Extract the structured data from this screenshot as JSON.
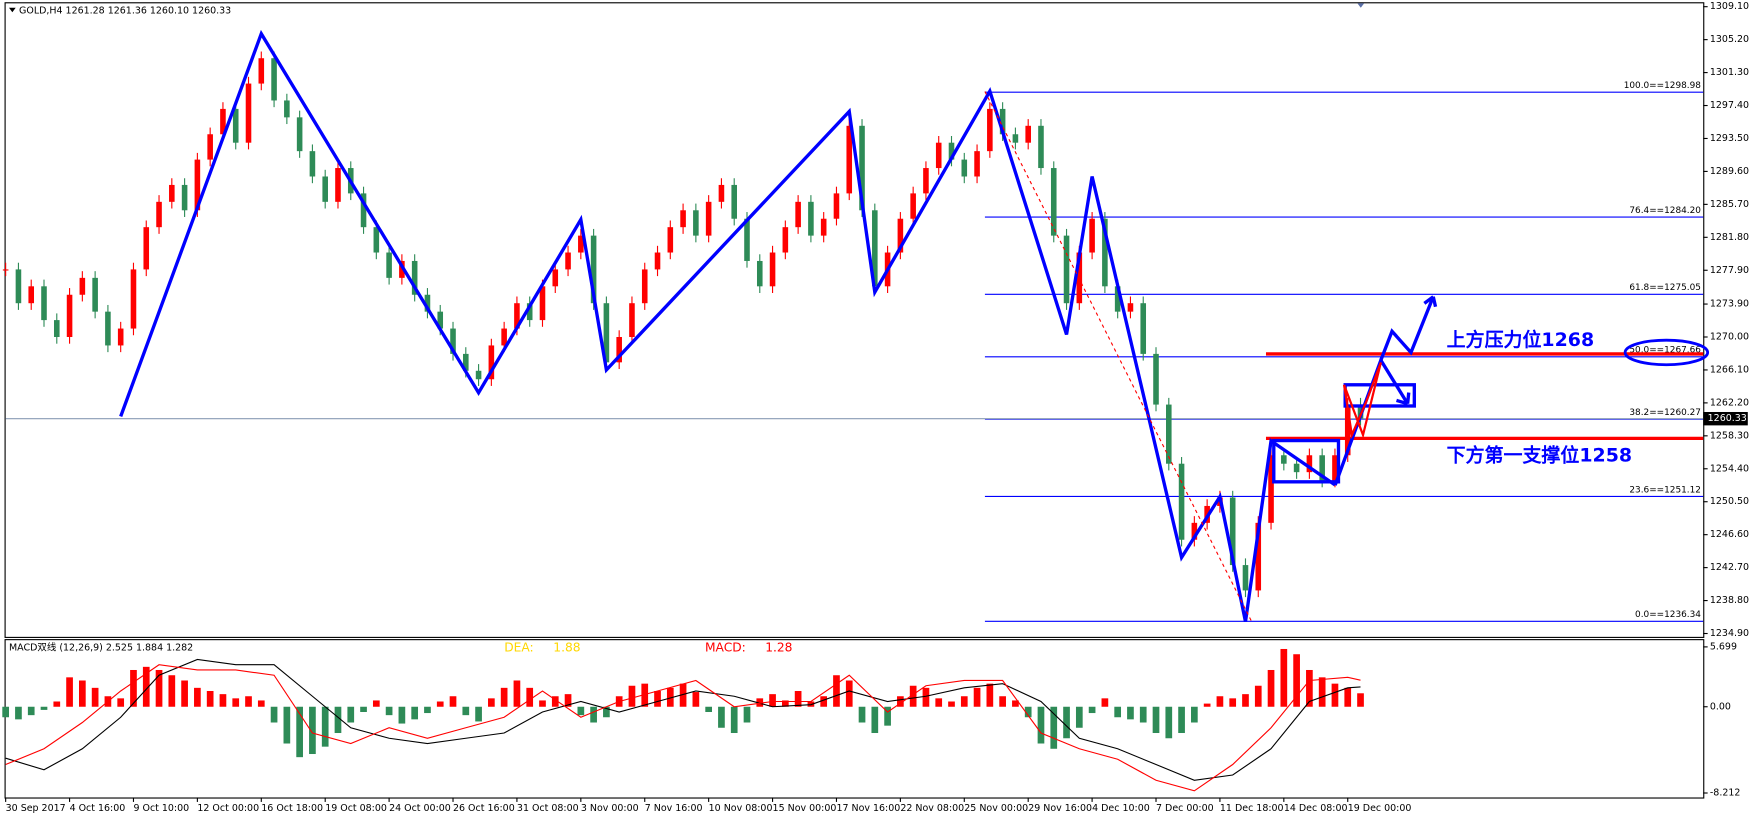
{
  "chart_data": {
    "type": "candlestick",
    "header": "GOLD,H4  1261.28 1261.36 1260.10 1260.33",
    "x_labels": [
      "30 Sep 2017",
      "4 Oct 16:00",
      "9 Oct 10:00",
      "12 Oct 00:00",
      "16 Oct 18:00",
      "19 Oct 08:00",
      "24 Oct 00:00",
      "26 Oct 16:00",
      "31 Oct 08:00",
      "3 Nov 00:00",
      "7 Nov 16:00",
      "10 Nov 08:00",
      "15 Nov 00:00",
      "17 Nov 16:00",
      "22 Nov 08:00",
      "25 Nov 00:00",
      "29 Nov 16:00",
      "4 Dec 10:00",
      "7 Dec 00:00",
      "11 Dec 18:00",
      "14 Dec 08:00",
      "19 Dec 00:00"
    ],
    "closes": [
      1278,
      1274,
      1276,
      1272,
      1270,
      1275,
      1277,
      1273,
      1269,
      1271,
      1278,
      1283,
      1286,
      1288,
      1285,
      1291,
      1294,
      1297,
      1293,
      1300,
      1303,
      1298,
      1296,
      1292,
      1289,
      1286,
      1290,
      1287,
      1283,
      1280,
      1277,
      1279,
      1275,
      1273,
      1271,
      1268,
      1266,
      1265,
      1269,
      1271,
      1274,
      1272,
      1276,
      1278,
      1280,
      1282,
      1274,
      1267,
      1270,
      1274,
      1278,
      1280,
      1283,
      1285,
      1282,
      1286,
      1288,
      1284,
      1279,
      1276,
      1280,
      1283,
      1286,
      1282,
      1284,
      1287,
      1295,
      1285,
      1276,
      1280,
      1284,
      1287,
      1290,
      1293,
      1291,
      1289,
      1292,
      1297,
      1294,
      1293,
      1295,
      1290,
      1282,
      1274,
      1280,
      1284,
      1276,
      1273,
      1274,
      1268,
      1262,
      1255,
      1246,
      1248,
      1250,
      1251,
      1243,
      1240,
      1248,
      1256,
      1255,
      1254,
      1256,
      1253,
      1256,
      1262,
      1260.33
    ],
    "up_color": "#ff0000",
    "down_color": "#2e8b57",
    "ylim": [
      1234.9,
      1309.1
    ],
    "yticks": [
      {
        "value": 1309.1,
        "label": "1309.10"
      },
      {
        "value": 1305.2,
        "label": "1305.20"
      },
      {
        "value": 1301.3,
        "label": "1301.30"
      },
      {
        "value": 1297.4,
        "label": "1297.40"
      },
      {
        "value": 1293.5,
        "label": "1293.50"
      },
      {
        "value": 1289.6,
        "label": "1289.60"
      },
      {
        "value": 1285.7,
        "label": "1285.70"
      },
      {
        "value": 1281.8,
        "label": "1281.80"
      },
      {
        "value": 1277.9,
        "label": "1277.90"
      },
      {
        "value": 1273.9,
        "label": "1273.90"
      },
      {
        "value": 1270,
        "label": "1270.00"
      },
      {
        "value": 1266.1,
        "label": "1266.10"
      },
      {
        "value": 1262.2,
        "label": "1262.20"
      },
      {
        "value": 1258.3,
        "label": "1258.30"
      },
      {
        "value": 1254.4,
        "label": "1254.40"
      },
      {
        "value": 1250.5,
        "label": "1250.50"
      },
      {
        "value": 1246.6,
        "label": "1246.60"
      },
      {
        "value": 1242.7,
        "label": "1242.70"
      },
      {
        "value": 1238.8,
        "label": "1238.80"
      },
      {
        "value": 1234.9,
        "label": "1234.90"
      }
    ],
    "last_price": {
      "value": 1260.33,
      "label": "1260.33"
    },
    "zigzag": {
      "color": "#0000ff",
      "x": [
        9,
        20,
        37,
        45,
        47,
        66,
        68,
        77,
        83,
        85,
        92,
        95,
        97,
        99,
        104
      ],
      "values": [
        1260.6,
        1305.9,
        1263.4,
        1283.9,
        1266.1,
        1296.7,
        1275.3,
        1299.1,
        1270.3,
        1289.0,
        1243.9,
        1251.1,
        1236.3,
        1257.7,
        1252.5
      ]
    },
    "fib_color": "#0000ff",
    "fib_levels": [
      {
        "label": "100.0==1298.98",
        "value": 1298.98
      },
      {
        "label": "76.4==1284.20",
        "value": 1284.2
      },
      {
        "label": "61.8==1275.05",
        "value": 1275.05
      },
      {
        "label": "50.0==1267.66",
        "value": 1267.66
      },
      {
        "label": "38.2==1260.27",
        "value": 1260.27
      },
      {
        "label": "23.6==1251.12",
        "value": 1251.12
      },
      {
        "label": "0.0==1236.34",
        "value": 1236.34
      }
    ],
    "levels": [
      {
        "label": "上方压力位1268",
        "value": 1268,
        "color": "#ff0000"
      },
      {
        "label": "下方第一支撑位1258",
        "value": 1258,
        "color": "#ff0000"
      }
    ],
    "macd": {
      "title": "MACD双线 (12,26,9) 2.525 1.884 1.282",
      "dea_label": "DEA:",
      "dea_value": 1.88,
      "dea_color": "#ffd700",
      "macd_label": "MACD:",
      "macd_value": 1.28,
      "macd_color": "#ff0000",
      "ylim": [
        -8.212,
        5.699
      ],
      "yticks": [
        5.699,
        {
          "value": 0,
          "label": "0.00"
        },
        -8.212
      ],
      "histogram": [
        -1.0,
        -1.2,
        -0.8,
        -0.3,
        0.5,
        2.8,
        2.5,
        1.8,
        1.0,
        0.8,
        3.5,
        3.8,
        3.5,
        3.0,
        2.5,
        1.8,
        1.5,
        1.2,
        0.8,
        1.0,
        0.6,
        -1.5,
        -3.5,
        -4.8,
        -4.5,
        -3.8,
        -2.5,
        -1.5,
        -0.5,
        0.6,
        -0.8,
        -1.6,
        -1.2,
        -0.6,
        0.5,
        1.0,
        -0.8,
        -1.4,
        0.8,
        1.8,
        2.5,
        1.8,
        0.6,
        1.0,
        1.2,
        -0.8,
        -1.5,
        -1.0,
        1.0,
        2.0,
        2.2,
        1.5,
        1.8,
        2.2,
        1.4,
        -0.5,
        -2.0,
        -2.5,
        -1.5,
        0.8,
        1.2,
        0.6,
        1.5,
        0.5,
        1.0,
        3.0,
        2.5,
        -1.5,
        -2.5,
        -1.8,
        1.0,
        2.0,
        1.8,
        0.8,
        0.5,
        1.0,
        1.8,
        2.2,
        1.0,
        0.6,
        -1.0,
        -3.5,
        -4.0,
        -3.0,
        -2.0,
        -0.6,
        0.8,
        -1.0,
        -1.2,
        -1.5,
        -2.5,
        -3.0,
        -2.5,
        -1.5,
        0.3,
        1.0,
        0.8,
        1.2,
        2.0,
        3.5,
        5.5,
        5.0,
        3.5,
        2.8,
        2.2,
        1.8,
        1.282
      ],
      "up_color": "#ff0000",
      "down_color": "#2e8b57",
      "lines_x": [
        0,
        3,
        6,
        9,
        12,
        15,
        18,
        21,
        24,
        27,
        30,
        33,
        36,
        39,
        42,
        45,
        48,
        51,
        54,
        57,
        60,
        63,
        66,
        69,
        72,
        75,
        78,
        81,
        84,
        87,
        90,
        93,
        96,
        99,
        102,
        105,
        106
      ],
      "series": [
        {
          "color": "#000000",
          "values": [
            -4.9,
            -6.0,
            -4.0,
            -1.0,
            3.0,
            4.5,
            4.0,
            4.0,
            1.0,
            -2.0,
            -3.0,
            -3.5,
            -3.0,
            -2.5,
            -0.5,
            0.5,
            -0.5,
            0.5,
            1.5,
            1.0,
            0.0,
            0.2,
            1.5,
            0.5,
            1.0,
            1.8,
            2.2,
            0.5,
            -3.0,
            -4.0,
            -5.5,
            -7.0,
            -6.5,
            -4.0,
            0.5,
            1.8,
            1.884
          ]
        },
        {
          "color": "#ff0000",
          "values": [
            -5.5,
            -4.0,
            -1.5,
            1.5,
            4.0,
            3.5,
            3.5,
            3.0,
            -2.5,
            -3.5,
            -2.0,
            -3.0,
            -2.0,
            -1.0,
            1.5,
            -1.0,
            0.5,
            1.5,
            2.5,
            0.0,
            0.5,
            0.5,
            3.0,
            -0.5,
            2.0,
            2.5,
            2.5,
            -2.5,
            -4.0,
            -5.0,
            -7.0,
            -8.0,
            -5.5,
            -2.0,
            2.5,
            2.8,
            2.525
          ]
        }
      ]
    }
  }
}
